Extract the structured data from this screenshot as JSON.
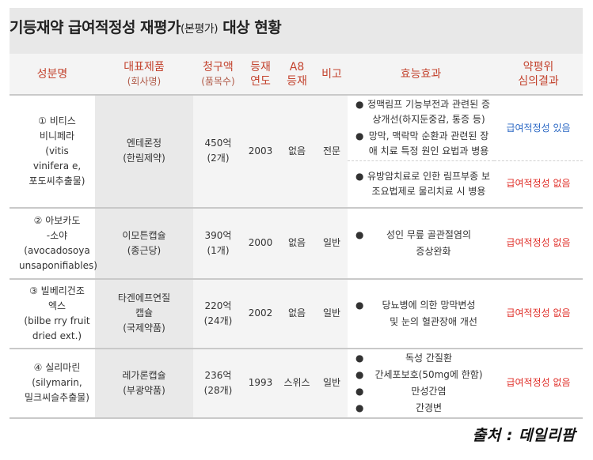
{
  "title": {
    "main": "기등재약 급여적정성 재평가",
    "paren": "(본평가)",
    "tail": "대상 현황"
  },
  "columns": {
    "ingredient": "성분명",
    "product": "대표제품",
    "product_sub": "(회사명)",
    "claim": "청구액",
    "claim_sub": "(품목수)",
    "year_1": "등재",
    "year_2": "연도",
    "a8_1": "A8",
    "a8_2": "등재",
    "note": "비고",
    "effect": "효능효과",
    "result_1": "약평위",
    "result_2": "심의결과"
  },
  "rows": [
    {
      "ingredient_lines": [
        "① 비티스",
        "비니페라",
        "(vitis",
        "vinifera e,",
        "포도씨추출물)"
      ],
      "product_lines": [
        "엔테론정",
        "(한림제약)"
      ],
      "claim_lines": [
        "450억",
        "(2개)"
      ],
      "year": "2003",
      "a8": "없음",
      "note": "전문",
      "effects": [
        {
          "items": [
            {
              "bullet": "●",
              "text": "정맥림프 기능부전과 관련된 증상개선(하지둔중감, 통증 등)"
            },
            {
              "bullet": "●",
              "text": "망막, 맥락막 순환과 관련된 장애 치료 특정 원인 요법과 병용"
            }
          ],
          "result": "급여적정성 있음",
          "result_type": "pos"
        },
        {
          "items": [
            {
              "bullet": "●",
              "text": "유방암치료로 인한 림프부종 보조요법제로 물리치료 시 병용"
            }
          ],
          "result": "급여적정성 없음",
          "result_type": "neg"
        }
      ]
    },
    {
      "ingredient_lines": [
        "② 아보카도",
        "-소야",
        "(avocadosoya",
        "unsaponifiables)"
      ],
      "product_lines": [
        "이모튼캡슐",
        "(종근당)"
      ],
      "claim_lines": [
        "390억",
        "(1개)"
      ],
      "year": "2000",
      "a8": "없음",
      "note": "일반",
      "effects": [
        {
          "items": [
            {
              "bullet": "●",
              "text": "성인 무릎 골관절염의"
            },
            {
              "bullet": "",
              "text": "증상완화"
            }
          ],
          "result": "급여적정성 없음",
          "result_type": "neg"
        }
      ]
    },
    {
      "ingredient_lines": [
        "③ 빌베리건조",
        "엑스",
        "(bilbe rry fruit",
        "dried ext.)"
      ],
      "product_lines": [
        "타겐에프연질",
        "캡슐",
        "(국제약품)"
      ],
      "claim_lines": [
        "220억",
        "(24개)"
      ],
      "year": "2002",
      "a8": "없음",
      "note": "일반",
      "effects": [
        {
          "items": [
            {
              "bullet": "●",
              "text": "당뇨병에 의한 망막변성"
            },
            {
              "bullet": "",
              "text": "및 눈의 혈관장애 개선"
            }
          ],
          "result": "급여적정성 없음",
          "result_type": "neg"
        }
      ]
    },
    {
      "ingredient_lines": [
        "④ 실리마린",
        "(silymarin,",
        "밀크씨슬추출물)"
      ],
      "product_lines": [
        "레가론캡슐",
        "(부광약품)"
      ],
      "claim_lines": [
        "236억",
        "(28개)"
      ],
      "year": "1993",
      "a8": "스위스",
      "note": "일반",
      "effects": [
        {
          "items": [
            {
              "bullet": "●",
              "text": "독성 간질환"
            },
            {
              "bullet": "●",
              "text": "간세포보호(50mg에 한함)"
            },
            {
              "bullet": "●",
              "text": "만성간염"
            },
            {
              "bullet": "●",
              "text": "간경변"
            }
          ],
          "result": "급여적정성 없음",
          "result_type": "neg"
        }
      ]
    }
  ],
  "source": "출처 : 데일리팜"
}
